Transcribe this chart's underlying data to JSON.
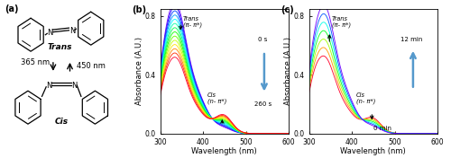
{
  "panel_b": {
    "label": "(b)",
    "xlabel": "Wavelength (nm)",
    "ylabel": "Absorbance (A.U.)",
    "xlim": [
      300,
      600
    ],
    "ylim": [
      0.0,
      0.85
    ],
    "yticks": [
      0.0,
      0.4,
      0.8
    ],
    "xticks": [
      300,
      400,
      500,
      600
    ],
    "n_curves": 14,
    "time_start": "0 s",
    "time_end": "260 s"
  },
  "panel_c": {
    "label": "(c)",
    "xlabel": "Wavelength (nm)",
    "ylabel": "Absorbance (A.U.)",
    "xlim": [
      300,
      600
    ],
    "ylim": [
      0.0,
      0.85
    ],
    "yticks": [
      0.0,
      0.4,
      0.8
    ],
    "xticks": [
      300,
      400,
      500,
      600
    ],
    "n_curves": 7,
    "time_start": "0 min",
    "time_end": "12 min"
  },
  "background_color": "#ffffff",
  "panel_a_label": "(a)",
  "trans_text": "Trans",
  "cis_text": "Cis",
  "nm365_text": "365 nm",
  "nm450_text": "450 nm",
  "trans_band": "Trans\n(π- π*)",
  "cis_band": "Cis\n(n- π*)"
}
